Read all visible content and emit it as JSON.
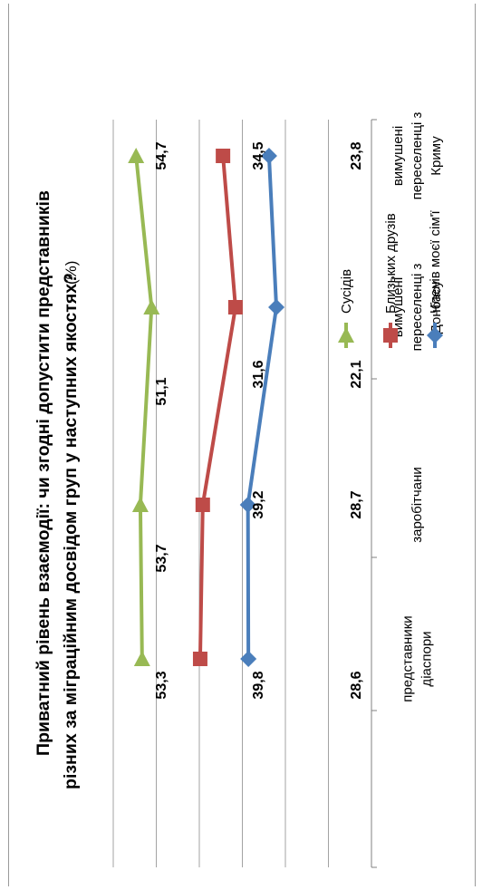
{
  "chart_data": {
    "type": "line",
    "title_line1": "Приватний рівень взаємодії: чи згодні допустити представників",
    "title_line2": "різних за міграційним досвідом груп у наступних якостях?",
    "title_unit": "(%)",
    "categories": [
      [
        "представники",
        "діаспори"
      ],
      [
        "заробітчани"
      ],
      [
        "вимушені",
        "переселенці з",
        "Донбасу"
      ],
      [
        "вимушені",
        "переселенці з",
        "Криму"
      ]
    ],
    "series": [
      {
        "name": "Членів моєї сім'ї",
        "values": [
          28.6,
          28.7,
          22.1,
          23.8
        ],
        "color": "#4a7ebb",
        "marker": "diamond",
        "labels": [
          "28,6",
          "28,7",
          "22,1",
          "23,8"
        ]
      },
      {
        "name": "Близьких друзів",
        "values": [
          39.8,
          39.2,
          31.6,
          34.5
        ],
        "color": "#be4b48",
        "marker": "square",
        "labels": [
          "39,8",
          "39,2",
          "31,6",
          "34,5"
        ]
      },
      {
        "name": "Сусідів",
        "values": [
          53.3,
          53.7,
          51.1,
          54.7
        ],
        "color": "#98b954",
        "marker": "triangle",
        "labels": [
          "53,3",
          "53,7",
          "51,1",
          "54,7"
        ]
      }
    ],
    "ylim": [
      0,
      60
    ],
    "grid": true,
    "legend_position": "right"
  }
}
